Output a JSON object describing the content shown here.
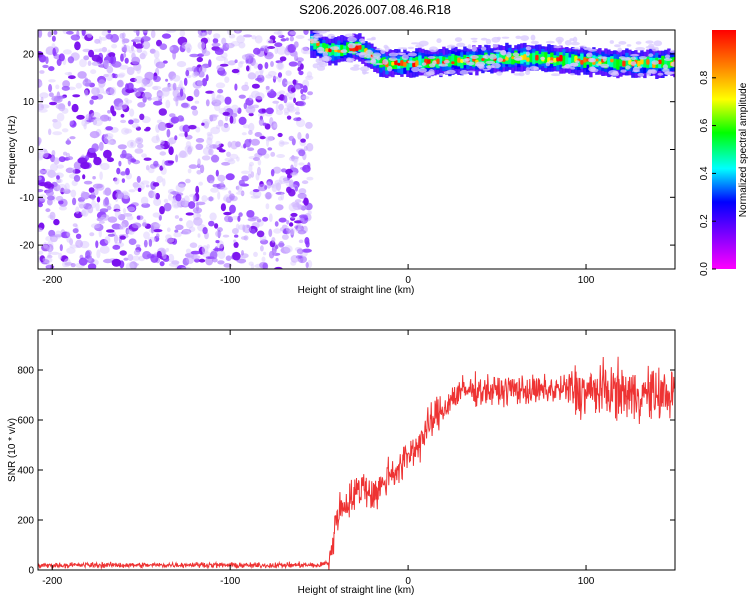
{
  "title": "S206.2026.007.08.46.R18",
  "chart_data": [
    {
      "type": "heatmap",
      "name": "spectrogram",
      "xlabel": "Height of straight line (km)",
      "ylabel": "Frequency (Hz)",
      "xlim": [
        -208,
        150
      ],
      "ylim": [
        -25,
        25
      ],
      "xticks": [
        -200,
        -100,
        0,
        100
      ],
      "yticks": [
        20,
        10,
        0,
        -10,
        -20
      ],
      "colorbar": {
        "label": "Normalized spectral amplitude",
        "range": [
          0.0,
          1.0
        ],
        "ticks": [
          0.0,
          0.2,
          0.4,
          0.6,
          0.8
        ],
        "tick_labels": [
          "0.0",
          "0.2",
          "0.4",
          "0.6",
          "0.8"
        ],
        "colormap": [
          "#ff00ff",
          "#8000ff",
          "#0000ff",
          "#00ffff",
          "#00ff00",
          "#ffff00",
          "#ff8000",
          "#ff0000"
        ]
      },
      "regions": [
        {
          "desc": "broadband noise",
          "x_range": [
            -208,
            -55
          ],
          "freq_range": [
            -25,
            25
          ],
          "amplitude_range": [
            0.0,
            0.35
          ]
        },
        {
          "desc": "narrow band signal",
          "x_range": [
            -55,
            150
          ],
          "amplitude_range": [
            0.3,
            1.0
          ]
        }
      ],
      "ridge": {
        "x": [
          -55,
          -45,
          -35,
          -28,
          -22,
          -15,
          0,
          25,
          50,
          75,
          100,
          125,
          150
        ],
        "freq": [
          22.5,
          20.5,
          21.0,
          21.5,
          19.5,
          18.0,
          18.0,
          18.5,
          19.0,
          19.0,
          18.5,
          18.0,
          18.0
        ]
      }
    },
    {
      "type": "line",
      "name": "snr",
      "xlabel": "Height of straight line (km)",
      "ylabel": "SNR (10 * v/v)",
      "xlim": [
        -208,
        150
      ],
      "ylim": [
        0,
        960
      ],
      "xticks": [
        -200,
        -100,
        0,
        100
      ],
      "yticks": [
        0,
        200,
        400,
        600,
        800
      ],
      "color": "#ee3333",
      "series": [
        {
          "name": "SNR",
          "x": [
            -208,
            -180,
            -150,
            -120,
            -90,
            -60,
            -50,
            -45,
            -42,
            -40,
            -35,
            -30,
            -25,
            -20,
            -15,
            -10,
            -5,
            0,
            5,
            10,
            15,
            20,
            25,
            30,
            40,
            50,
            60,
            70,
            80,
            90,
            100,
            110,
            120,
            125,
            130,
            140,
            150
          ],
          "values": [
            18,
            20,
            19,
            21,
            18,
            20,
            18,
            30,
            110,
            230,
            265,
            300,
            340,
            300,
            330,
            395,
            400,
            460,
            495,
            555,
            610,
            645,
            690,
            715,
            720,
            715,
            725,
            715,
            720,
            725,
            710,
            720,
            715,
            700,
            705,
            700,
            705
          ]
        }
      ]
    }
  ]
}
